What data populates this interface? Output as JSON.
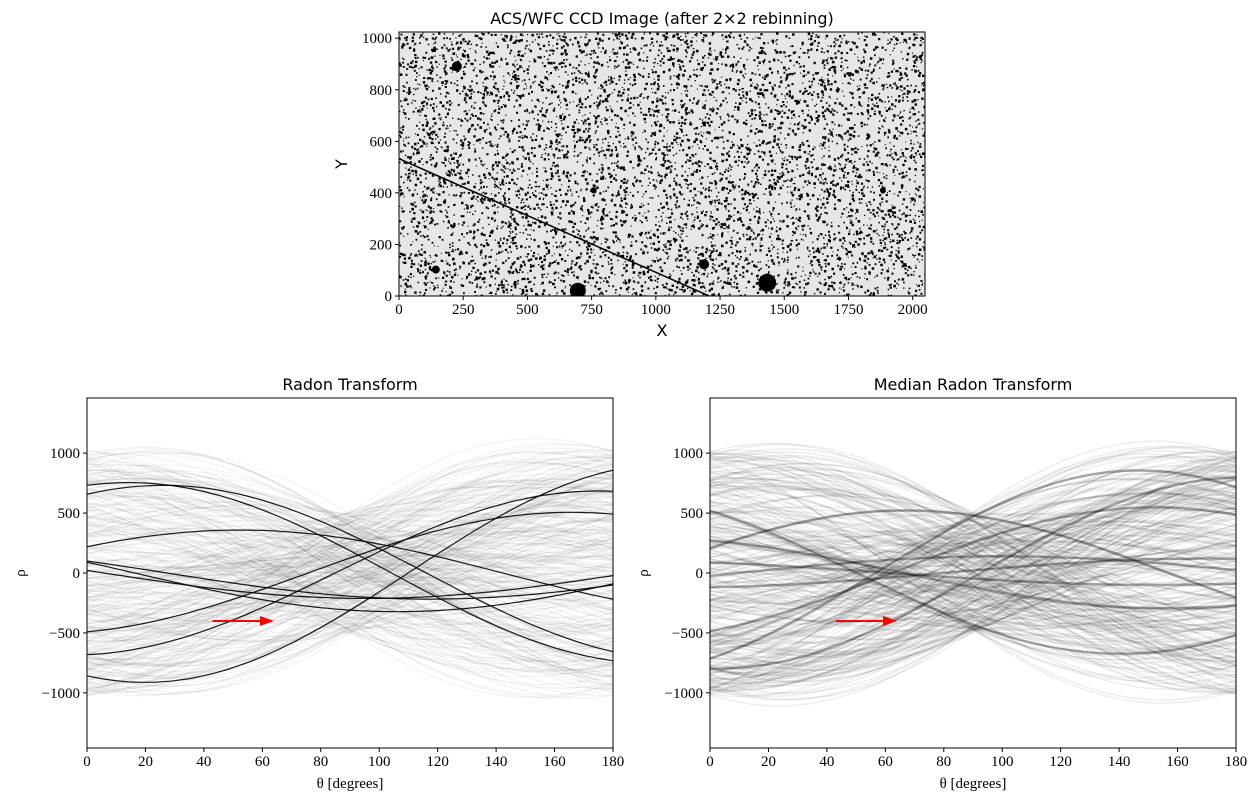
{
  "chart_data": [
    {
      "type": "image",
      "title": "ACS/WFC CCD Image (after 2×2 rebinning)",
      "xlabel": "X",
      "ylabel": "Y",
      "xlim": [
        0,
        2048
      ],
      "ylim": [
        0,
        1024
      ],
      "xticks": [
        0,
        250,
        500,
        750,
        1000,
        1250,
        1500,
        1750,
        2000
      ],
      "yticks": [
        0,
        200,
        400,
        600,
        800,
        1000
      ]
    },
    {
      "type": "radon",
      "title": "Radon Transform",
      "xlabel": "θ [degrees]",
      "ylabel": "ρ",
      "xlim": [
        0,
        180
      ],
      "ylim": [
        -1460,
        1460
      ],
      "xticks": [
        0,
        20,
        40,
        60,
        80,
        100,
        120,
        140,
        160,
        180
      ],
      "yticks": [
        {
          "value": -1000,
          "label": "−1000"
        },
        {
          "value": -500,
          "label": "−500"
        },
        0,
        500,
        1000
      ],
      "arrow": {
        "x": [
          43,
          64
        ],
        "y": [
          -400,
          -400
        ],
        "color": "#ff0000"
      }
    },
    {
      "type": "median-radon",
      "title": "Median Radon Transform",
      "xlabel": "θ [degrees]",
      "ylabel": "ρ",
      "xlim": [
        0,
        180
      ],
      "ylim": [
        -1460,
        1460
      ],
      "xticks": [
        0,
        20,
        40,
        60,
        80,
        100,
        120,
        140,
        160,
        180
      ],
      "yticks": [
        {
          "value": -1000,
          "label": "−1000"
        },
        {
          "value": -500,
          "label": "−500"
        },
        0,
        500,
        1000
      ],
      "arrow": {
        "x": [
          43,
          64
        ],
        "y": [
          -400,
          -400
        ],
        "color": "#ff0000"
      }
    }
  ]
}
